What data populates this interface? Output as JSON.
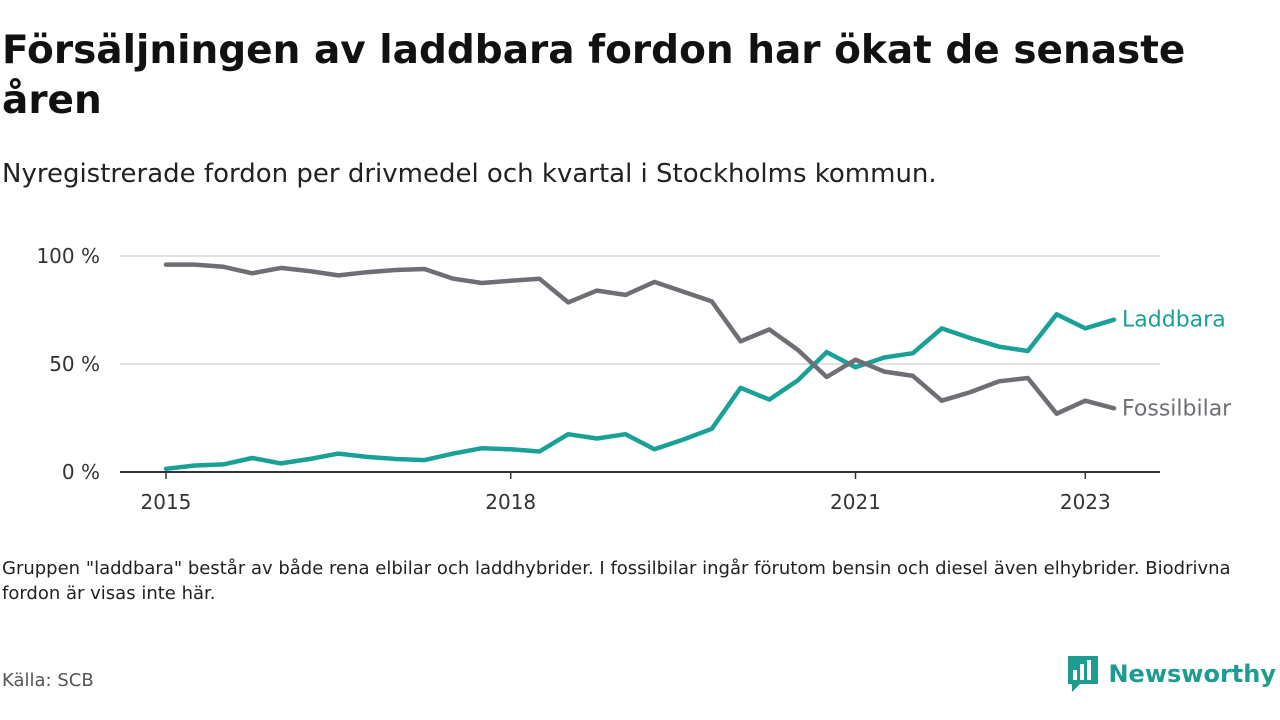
{
  "header": {
    "title": "Försäljningen av laddbara fordon har ökat de senaste åren",
    "subtitle": "Nyregistrerade fordon per drivmedel och kvartal i Stockholms kommun."
  },
  "footer": {
    "note": "Gruppen \"laddbara\" består av både rena elbilar och laddhybrider. I fossilbilar ingår förutom bensin och diesel även elhybrider. Biodrivna fordon är visas inte här.",
    "source": "Källa: SCB",
    "brand": "Newsworthy",
    "brand_color": "#1f9c90"
  },
  "chart_data": {
    "type": "line",
    "title": "Försäljningen av laddbara fordon har ökat de senaste åren",
    "xlabel": "",
    "ylabel": "",
    "x": [
      2015.0,
      2015.25,
      2015.5,
      2015.75,
      2016.0,
      2016.25,
      2016.5,
      2016.75,
      2017.0,
      2017.25,
      2017.5,
      2017.75,
      2018.0,
      2018.25,
      2018.5,
      2018.75,
      2019.0,
      2019.25,
      2019.5,
      2019.75,
      2020.0,
      2020.25,
      2020.5,
      2020.75,
      2021.0,
      2021.25,
      2021.5,
      2021.75,
      2022.0,
      2022.25,
      2022.5,
      2022.75,
      2023.0,
      2023.25
    ],
    "xlim": [
      2014.6,
      2023.65
    ],
    "ylim": [
      0,
      100
    ],
    "x_ticks": [
      {
        "value": 2015,
        "label": "2015"
      },
      {
        "value": 2018,
        "label": "2018"
      },
      {
        "value": 2021,
        "label": "2021"
      },
      {
        "value": 2023,
        "label": "2023"
      }
    ],
    "y_ticks": [
      {
        "value": 0,
        "label": "0 %"
      },
      {
        "value": 50,
        "label": "50 %"
      },
      {
        "value": 100,
        "label": "100 %"
      }
    ],
    "grid": true,
    "series": [
      {
        "name": "Laddbara",
        "color": "#19a197",
        "values": [
          1.5,
          3,
          3.5,
          6.5,
          4,
          6,
          8.5,
          7,
          6,
          5.5,
          8.5,
          11,
          10.5,
          9.5,
          17.5,
          15.5,
          17.5,
          10.5,
          15,
          20,
          39,
          33.5,
          42.5,
          55.5,
          48.5,
          53,
          55,
          66.5,
          62,
          58,
          56,
          73,
          66.5,
          70.5
        ]
      },
      {
        "name": "Fossilbilar",
        "color": "#6f6e75",
        "values": [
          96,
          96,
          95,
          92,
          94.5,
          93,
          91,
          92.5,
          93.5,
          94,
          89.5,
          87.5,
          88.5,
          89.5,
          78.5,
          84,
          82,
          88,
          83.5,
          79,
          60.5,
          66,
          56.5,
          44,
          52,
          46.5,
          44.5,
          33,
          37,
          42,
          43.5,
          27,
          33,
          29.5
        ]
      }
    ]
  }
}
